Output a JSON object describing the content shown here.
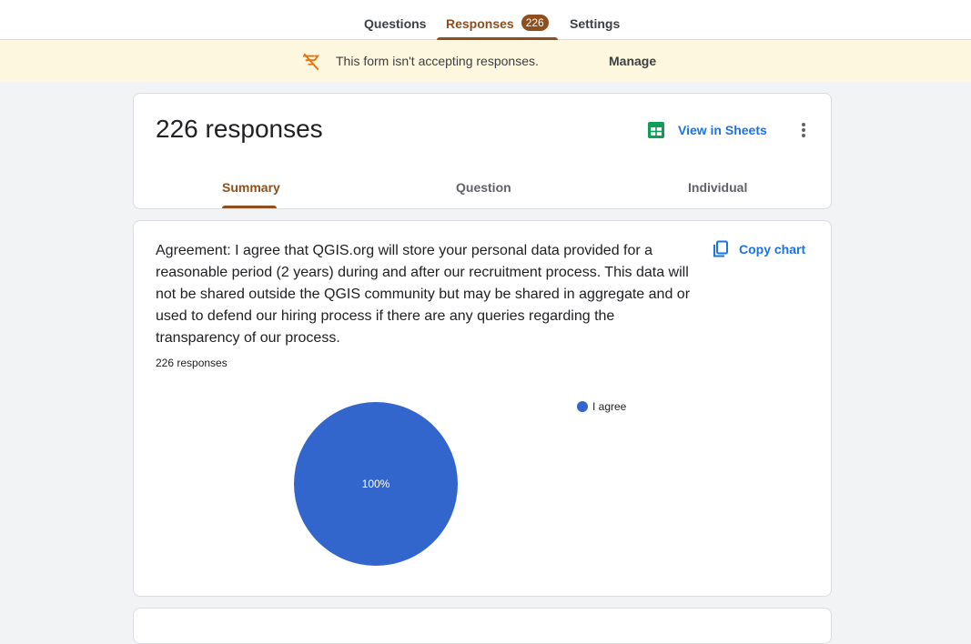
{
  "top_tabs": {
    "questions": "Questions",
    "responses": "Responses",
    "responses_badge": "226",
    "settings": "Settings"
  },
  "banner": {
    "icon": "filter-off-icon",
    "text": "This form isn't accepting responses.",
    "manage": "Manage"
  },
  "summary_card": {
    "title": "226 responses",
    "sheets_icon": "sheets-icon",
    "view_in_sheets": "View in Sheets",
    "tabs": {
      "summary": "Summary",
      "question": "Question",
      "individual": "Individual"
    },
    "active_tab": "Summary"
  },
  "question_card": {
    "text": "Agreement: I agree that QGIS.org will store your personal data provided for a reasonable period (2 years) during and after our recruitment process. This data will not be shared outside the QGIS community but may be shared in aggregate and or used to defend our hiring process if there are any queries regarding the transparency of our process.",
    "count": "226 responses",
    "copy_chart": "Copy chart"
  },
  "colors": {
    "accent": "#8d4f1d",
    "link": "#1a73e8",
    "banner_bg": "#fef7e0",
    "pie": "#3366cc",
    "sheets_green": "#0f9d58"
  },
  "chart_data": {
    "type": "pie",
    "categories": [
      "I agree"
    ],
    "values": [
      100
    ],
    "value_labels": [
      "100%"
    ],
    "legend_placement": "right"
  }
}
